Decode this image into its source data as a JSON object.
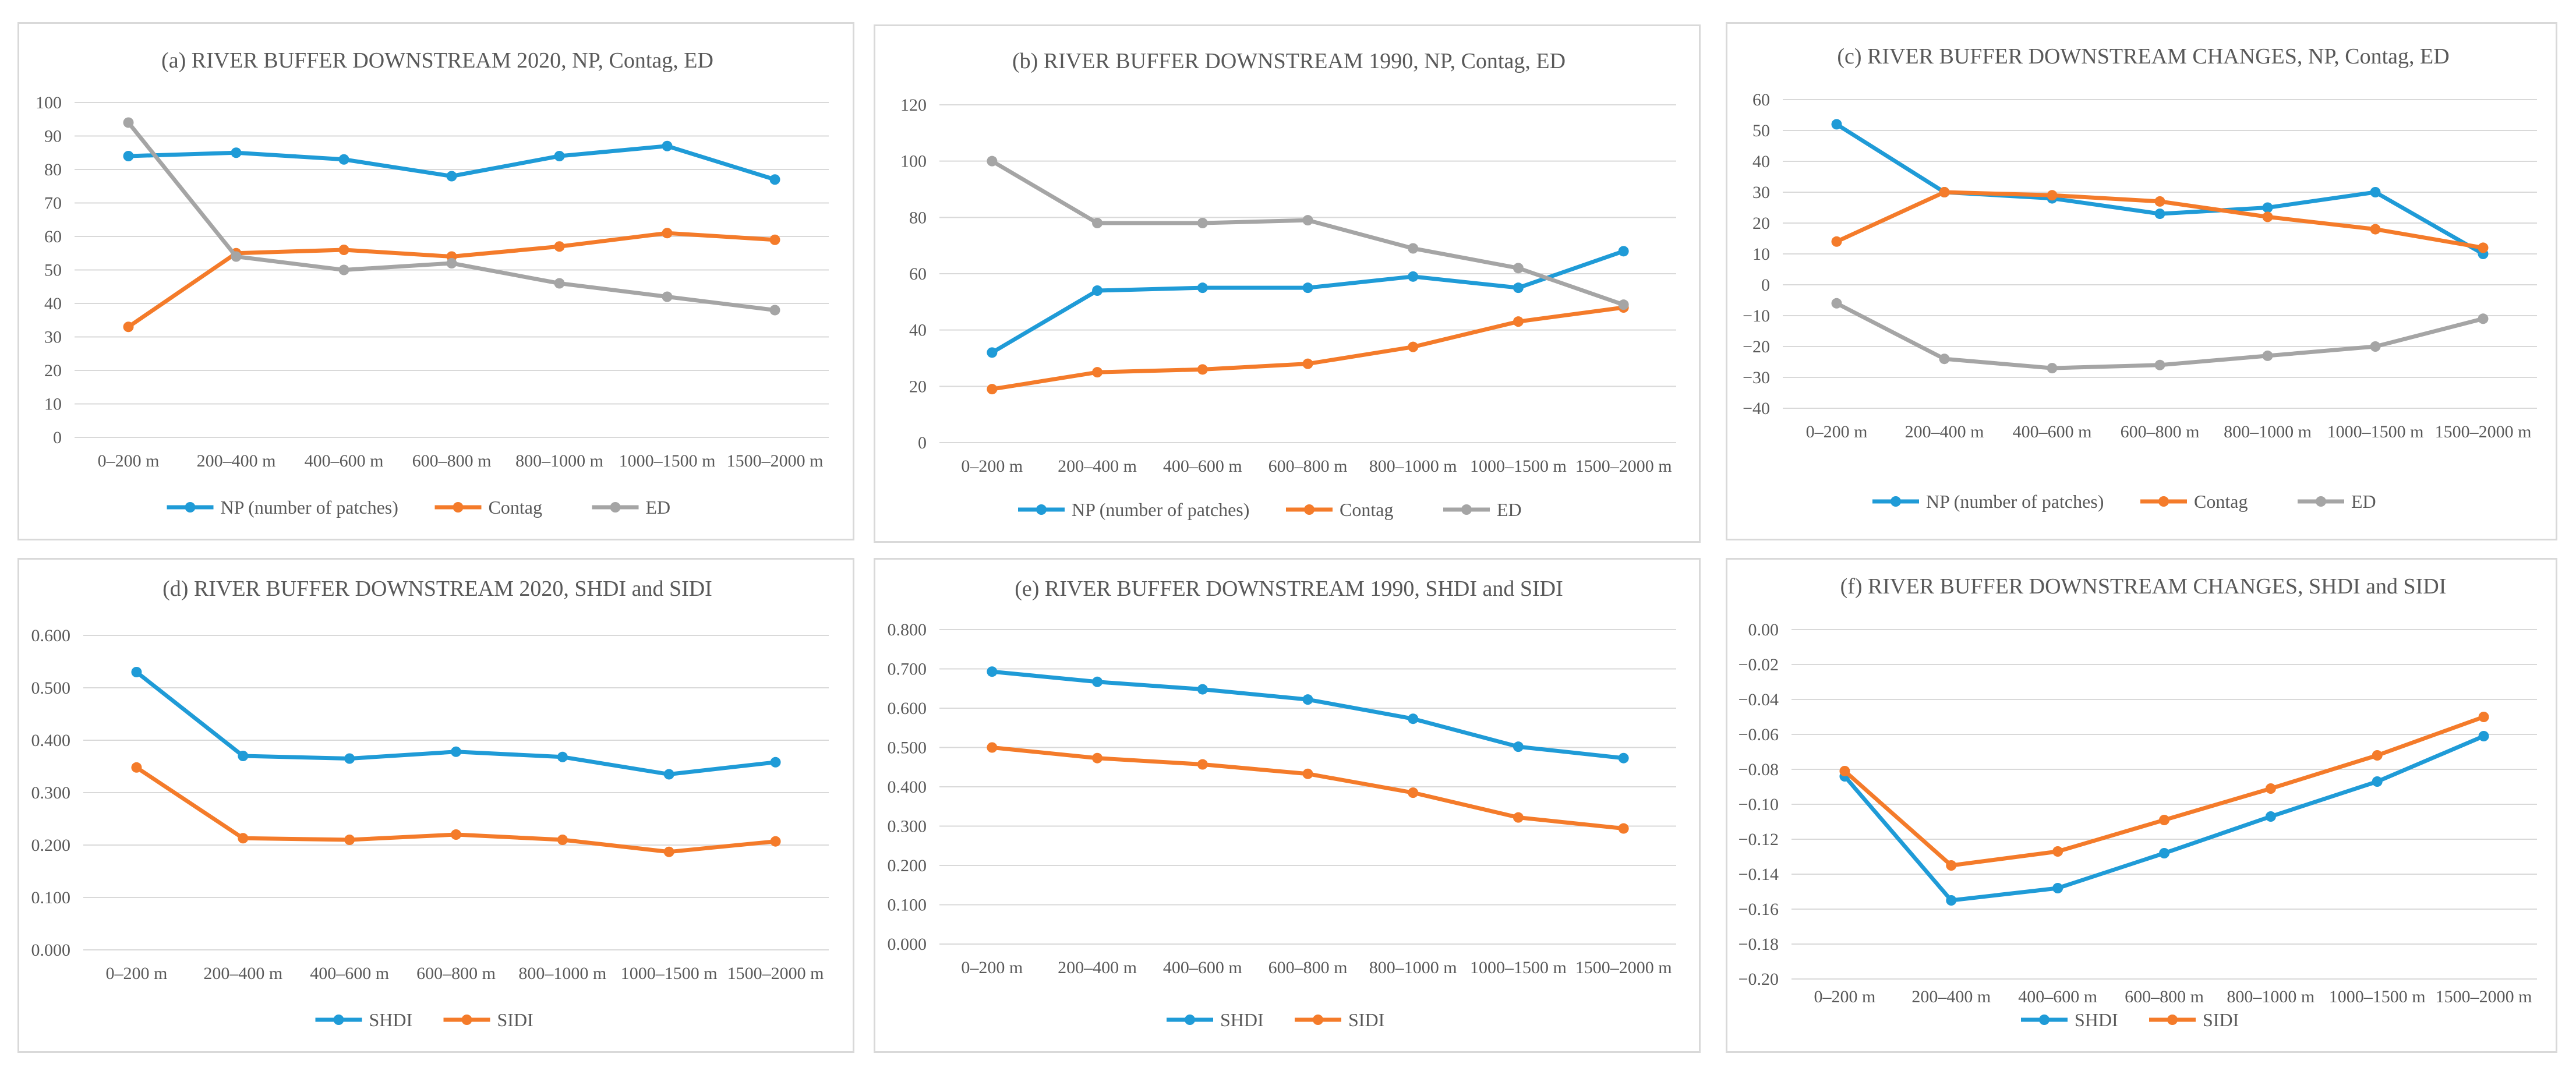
{
  "chart_data": [
    {
      "id": "a",
      "type": "line",
      "title": "(a) RIVER BUFFER DOWNSTREAM 2020, NP, Contag, ED",
      "categories": [
        "0–200 m",
        "200–400 m",
        "400–600 m",
        "600–800 m",
        "800–1000 m",
        "1000–1500 m",
        "1500–2000 m"
      ],
      "ylim": [
        0,
        100
      ],
      "yticks": [
        "0",
        "10",
        "20",
        "30",
        "40",
        "50",
        "60",
        "70",
        "80",
        "90",
        "100"
      ],
      "ytick_values": [
        0,
        10,
        20,
        30,
        40,
        50,
        60,
        70,
        80,
        90,
        100
      ],
      "series": [
        {
          "name": "NP (number of patches)",
          "color": "#1f9bd7",
          "values": [
            84,
            85,
            83,
            78,
            84,
            87,
            77
          ]
        },
        {
          "name": "Contag",
          "color": "#f47b2a",
          "values": [
            33,
            55,
            56,
            54,
            57,
            61,
            59
          ]
        },
        {
          "name": "ED",
          "color": "#a5a5a5",
          "values": [
            94,
            54,
            50,
            52,
            46,
            42,
            38
          ]
        }
      ]
    },
    {
      "id": "b",
      "type": "line",
      "title": "(b) RIVER BUFFER DOWNSTREAM 1990, NP, Contag, ED",
      "categories": [
        "0–200 m",
        "200–400 m",
        "400–600 m",
        "600–800 m",
        "800–1000 m",
        "1000–1500 m",
        "1500–2000 m"
      ],
      "ylim": [
        0,
        120
      ],
      "yticks": [
        "0",
        "20",
        "40",
        "60",
        "80",
        "100",
        "120"
      ],
      "ytick_values": [
        0,
        20,
        40,
        60,
        80,
        100,
        120
      ],
      "series": [
        {
          "name": "NP (number of patches)",
          "color": "#1f9bd7",
          "values": [
            32,
            54,
            55,
            55,
            59,
            55,
            68
          ]
        },
        {
          "name": "Contag",
          "color": "#f47b2a",
          "values": [
            19,
            25,
            26,
            28,
            34,
            43,
            48
          ]
        },
        {
          "name": "ED",
          "color": "#a5a5a5",
          "values": [
            100,
            78,
            78,
            79,
            69,
            62,
            49
          ]
        }
      ]
    },
    {
      "id": "c",
      "type": "line",
      "title": "(c) RIVER BUFFER DOWNSTREAM CHANGES, NP, Contag, ED",
      "categories": [
        "0–200 m",
        "200–400 m",
        "400–600 m",
        "600–800 m",
        "800–1000 m",
        "1000–1500 m",
        "1500–2000 m"
      ],
      "ylim": [
        -40,
        60
      ],
      "yticks": [
        "−40",
        "−30",
        "−20",
        "−10",
        "0",
        "10",
        "20",
        "30",
        "40",
        "50",
        "60"
      ],
      "ytick_values": [
        -40,
        -30,
        -20,
        -10,
        0,
        10,
        20,
        30,
        40,
        50,
        60
      ],
      "series": [
        {
          "name": "NP (number of patches)",
          "color": "#1f9bd7",
          "values": [
            52,
            30,
            28,
            23,
            25,
            30,
            10
          ]
        },
        {
          "name": "Contag",
          "color": "#f47b2a",
          "values": [
            14,
            30,
            29,
            27,
            22,
            18,
            12
          ]
        },
        {
          "name": "ED",
          "color": "#a5a5a5",
          "values": [
            -6,
            -24,
            -27,
            -26,
            -23,
            -20,
            -11
          ]
        }
      ]
    },
    {
      "id": "d",
      "type": "line",
      "title": "(d) RIVER BUFFER DOWNSTREAM 2020, SHDI and SIDI",
      "categories": [
        "0–200 m",
        "200–400 m",
        "400–600 m",
        "600–800 m",
        "800–1000 m",
        "1000–1500 m",
        "1500–2000 m"
      ],
      "ylim": [
        0,
        0.6
      ],
      "yticks": [
        "0.000",
        "0.100",
        "0.200",
        "0.300",
        "0.400",
        "0.500",
        "0.600"
      ],
      "ytick_values": [
        0,
        0.1,
        0.2,
        0.3,
        0.4,
        0.5,
        0.6
      ],
      "series": [
        {
          "name": "SHDI",
          "color": "#1f9bd7",
          "values": [
            0.53,
            0.37,
            0.365,
            0.378,
            0.368,
            0.335,
            0.358
          ]
        },
        {
          "name": "SIDI",
          "color": "#f47b2a",
          "values": [
            0.348,
            0.213,
            0.21,
            0.22,
            0.21,
            0.187,
            0.207
          ]
        }
      ]
    },
    {
      "id": "e",
      "type": "line",
      "title": "(e) RIVER BUFFER DOWNSTREAM 1990, SHDI and SIDI",
      "categories": [
        "0–200 m",
        "200–400 m",
        "400–600 m",
        "600–800 m",
        "800–1000 m",
        "1000–1500 m",
        "1500–2000 m"
      ],
      "ylim": [
        0,
        0.8
      ],
      "yticks": [
        "0.000",
        "0.100",
        "0.200",
        "0.300",
        "0.400",
        "0.500",
        "0.600",
        "0.700",
        "0.800"
      ],
      "ytick_values": [
        0,
        0.1,
        0.2,
        0.3,
        0.4,
        0.5,
        0.6,
        0.7,
        0.8
      ],
      "series": [
        {
          "name": "SHDI",
          "color": "#1f9bd7",
          "values": [
            0.693,
            0.667,
            0.648,
            0.622,
            0.573,
            0.502,
            0.473
          ]
        },
        {
          "name": "SIDI",
          "color": "#f47b2a",
          "values": [
            0.5,
            0.473,
            0.457,
            0.433,
            0.385,
            0.322,
            0.294
          ]
        }
      ]
    },
    {
      "id": "f",
      "type": "line",
      "title": "(f) RIVER BUFFER DOWNSTREAM CHANGES, SHDI and SIDI",
      "categories": [
        "0–200 m",
        "200–400 m",
        "400–600 m",
        "600–800 m",
        "800–1000 m",
        "1000–1500 m",
        "1500–2000 m"
      ],
      "ylim": [
        -0.2,
        0
      ],
      "yticks": [
        "−0.20",
        "−0.18",
        "−0.16",
        "−0.14",
        "−0.12",
        "−0.10",
        "−0.08",
        "−0.06",
        "−0.04",
        "−0.02",
        "0.00"
      ],
      "ytick_values": [
        -0.2,
        -0.18,
        -0.16,
        -0.14,
        -0.12,
        -0.1,
        -0.08,
        -0.06,
        -0.04,
        -0.02,
        0
      ],
      "series": [
        {
          "name": "SHDI",
          "color": "#1f9bd7",
          "values": [
            -0.084,
            -0.155,
            -0.148,
            -0.128,
            -0.107,
            -0.087,
            -0.061
          ]
        },
        {
          "name": "SIDI",
          "color": "#f47b2a",
          "values": [
            -0.081,
            -0.135,
            -0.127,
            -0.109,
            -0.091,
            -0.072,
            -0.05
          ]
        }
      ]
    }
  ]
}
